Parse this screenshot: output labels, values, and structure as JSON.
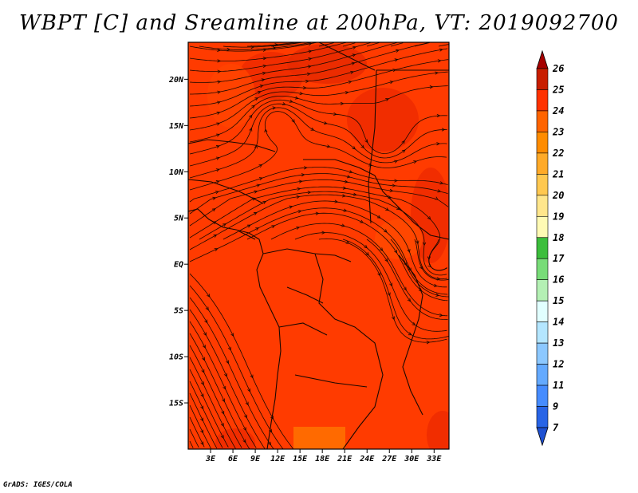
{
  "title": "WBPT [C] and Sreamline at 200hPa, VT: 2019092700",
  "footer": "GrADS: IGES/COLA",
  "map": {
    "field": "WBPT",
    "unit": "C",
    "level": "200hPa",
    "valid_time": "2019092700",
    "lat_ticks": [
      "20N",
      "15N",
      "10N",
      "5N",
      "EQ",
      "5S",
      "10S",
      "15S"
    ],
    "lon_ticks": [
      "3E",
      "6E",
      "9E",
      "12E",
      "15E",
      "18E",
      "21E",
      "24E",
      "27E",
      "30E",
      "33E"
    ],
    "lon_range": [
      0,
      35
    ],
    "lat_range": [
      -20,
      24
    ],
    "dominant_color": "#ff3b00"
  },
  "colorbar": {
    "levels": [
      "26",
      "25",
      "24",
      "23",
      "22",
      "21",
      "20",
      "19",
      "18",
      "17",
      "16",
      "15",
      "14",
      "13",
      "12",
      "11",
      "9",
      "7"
    ],
    "colors": [
      "#a50000",
      "#c81e00",
      "#ff3200",
      "#ff6400",
      "#ff8c00",
      "#ffaa28",
      "#ffc850",
      "#ffe68c",
      "#fffab4",
      "#3cbe3c",
      "#78dc78",
      "#b4f0b4",
      "#e1ffff",
      "#b4e6ff",
      "#8cc8ff",
      "#64aaff",
      "#468cff",
      "#2864e6",
      "#1e50d2"
    ]
  }
}
